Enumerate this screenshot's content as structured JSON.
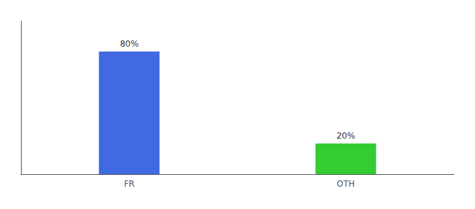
{
  "chart_data": {
    "type": "bar",
    "categories": [
      "FR",
      "OTH"
    ],
    "values": [
      80,
      20
    ],
    "value_labels": [
      "80%",
      "20%"
    ],
    "data_labels": true,
    "colors": [
      "#4169e1",
      "#33cc33"
    ],
    "ylim": [
      0,
      100
    ],
    "yticks": [],
    "tick_labels": "x",
    "grid": false
  }
}
